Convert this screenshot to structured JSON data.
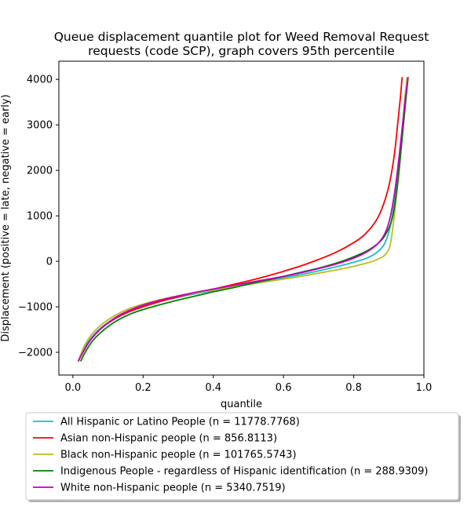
{
  "chart_data": {
    "type": "line",
    "title_lines": [
      "Queue displacement quantile plot for Weed Removal Request",
      "requests (code SCP), graph covers 95th percentile"
    ],
    "xlabel": "quantile",
    "ylabel": "Displacement (positive = late, negative = early)",
    "xlim": [
      -0.04,
      1.0
    ],
    "ylim": [
      -2500,
      4400
    ],
    "x_ticks": [
      0.0,
      0.2,
      0.4,
      0.6,
      0.8,
      1.0
    ],
    "x_tick_labels": [
      "0.0",
      "0.2",
      "0.4",
      "0.6",
      "0.8",
      "1.0"
    ],
    "y_ticks": [
      -2000,
      -1000,
      0,
      1000,
      2000,
      3000,
      4000
    ],
    "y_tick_labels": [
      "−2000",
      "−1000",
      "0",
      "1000",
      "2000",
      "3000",
      "4000"
    ],
    "grid": false,
    "legend_position": "below plot",
    "series": [
      {
        "name": "All Hispanic or Latino People (n = 11778.7768)",
        "color": "#17becf",
        "points": [
          [
            0.015,
            -2200
          ],
          [
            0.03,
            -1950
          ],
          [
            0.05,
            -1700
          ],
          [
            0.08,
            -1460
          ],
          [
            0.12,
            -1250
          ],
          [
            0.16,
            -1100
          ],
          [
            0.2,
            -990
          ],
          [
            0.25,
            -880
          ],
          [
            0.3,
            -790
          ],
          [
            0.35,
            -710
          ],
          [
            0.4,
            -640
          ],
          [
            0.45,
            -570
          ],
          [
            0.5,
            -500
          ],
          [
            0.55,
            -430
          ],
          [
            0.6,
            -360
          ],
          [
            0.65,
            -290
          ],
          [
            0.7,
            -210
          ],
          [
            0.75,
            -120
          ],
          [
            0.8,
            -20
          ],
          [
            0.84,
            80
          ],
          [
            0.87,
            220
          ],
          [
            0.89,
            420
          ],
          [
            0.905,
            800
          ],
          [
            0.92,
            1500
          ],
          [
            0.935,
            2600
          ],
          [
            0.945,
            3500
          ],
          [
            0.952,
            4050
          ]
        ]
      },
      {
        "name": "Asian non-Hispanic people (n = 856.8113)",
        "color": "#ff0000",
        "points": [
          [
            0.015,
            -2200
          ],
          [
            0.03,
            -1980
          ],
          [
            0.05,
            -1730
          ],
          [
            0.08,
            -1480
          ],
          [
            0.12,
            -1260
          ],
          [
            0.16,
            -1110
          ],
          [
            0.2,
            -1000
          ],
          [
            0.25,
            -880
          ],
          [
            0.3,
            -780
          ],
          [
            0.35,
            -690
          ],
          [
            0.4,
            -610
          ],
          [
            0.45,
            -520
          ],
          [
            0.5,
            -430
          ],
          [
            0.55,
            -330
          ],
          [
            0.6,
            -220
          ],
          [
            0.65,
            -100
          ],
          [
            0.7,
            40
          ],
          [
            0.75,
            200
          ],
          [
            0.8,
            410
          ],
          [
            0.83,
            580
          ],
          [
            0.86,
            850
          ],
          [
            0.88,
            1150
          ],
          [
            0.9,
            1650
          ],
          [
            0.915,
            2300
          ],
          [
            0.925,
            3000
          ],
          [
            0.933,
            3600
          ],
          [
            0.938,
            4050
          ]
        ]
      },
      {
        "name": "Black non-Hispanic people (n = 101765.5743)",
        "color": "#bcbd22",
        "points": [
          [
            0.015,
            -2200
          ],
          [
            0.03,
            -1900
          ],
          [
            0.05,
            -1640
          ],
          [
            0.08,
            -1400
          ],
          [
            0.12,
            -1190
          ],
          [
            0.16,
            -1040
          ],
          [
            0.2,
            -940
          ],
          [
            0.25,
            -840
          ],
          [
            0.3,
            -760
          ],
          [
            0.35,
            -690
          ],
          [
            0.4,
            -630
          ],
          [
            0.45,
            -570
          ],
          [
            0.5,
            -510
          ],
          [
            0.55,
            -450
          ],
          [
            0.6,
            -390
          ],
          [
            0.65,
            -330
          ],
          [
            0.7,
            -260
          ],
          [
            0.75,
            -190
          ],
          [
            0.8,
            -110
          ],
          [
            0.85,
            -10
          ],
          [
            0.875,
            70
          ],
          [
            0.89,
            150
          ],
          [
            0.905,
            400
          ],
          [
            0.92,
            1300
          ],
          [
            0.935,
            2500
          ],
          [
            0.945,
            3500
          ],
          [
            0.952,
            4050
          ]
        ]
      },
      {
        "name": "Indigenous People - regardless of Hispanic identification (n = 288.9309)",
        "color": "#008000",
        "points": [
          [
            0.022,
            -2200
          ],
          [
            0.035,
            -2000
          ],
          [
            0.055,
            -1760
          ],
          [
            0.08,
            -1560
          ],
          [
            0.12,
            -1330
          ],
          [
            0.16,
            -1170
          ],
          [
            0.2,
            -1060
          ],
          [
            0.25,
            -950
          ],
          [
            0.3,
            -850
          ],
          [
            0.35,
            -760
          ],
          [
            0.4,
            -670
          ],
          [
            0.45,
            -590
          ],
          [
            0.5,
            -500
          ],
          [
            0.55,
            -420
          ],
          [
            0.6,
            -330
          ],
          [
            0.65,
            -240
          ],
          [
            0.7,
            -150
          ],
          [
            0.75,
            -40
          ],
          [
            0.8,
            100
          ],
          [
            0.84,
            240
          ],
          [
            0.87,
            400
          ],
          [
            0.89,
            580
          ],
          [
            0.91,
            950
          ],
          [
            0.925,
            1700
          ],
          [
            0.938,
            2700
          ],
          [
            0.948,
            3500
          ],
          [
            0.955,
            4050
          ]
        ]
      },
      {
        "name": "White non-Hispanic people (n = 5340.7519)",
        "color": "#bf00bf",
        "points": [
          [
            0.015,
            -2200
          ],
          [
            0.03,
            -1980
          ],
          [
            0.05,
            -1730
          ],
          [
            0.08,
            -1480
          ],
          [
            0.12,
            -1240
          ],
          [
            0.16,
            -1080
          ],
          [
            0.2,
            -960
          ],
          [
            0.25,
            -850
          ],
          [
            0.3,
            -760
          ],
          [
            0.35,
            -680
          ],
          [
            0.4,
            -610
          ],
          [
            0.45,
            -540
          ],
          [
            0.5,
            -470
          ],
          [
            0.55,
            -400
          ],
          [
            0.6,
            -330
          ],
          [
            0.65,
            -250
          ],
          [
            0.7,
            -160
          ],
          [
            0.75,
            -60
          ],
          [
            0.8,
            70
          ],
          [
            0.84,
            220
          ],
          [
            0.87,
            400
          ],
          [
            0.89,
            630
          ],
          [
            0.905,
            1000
          ],
          [
            0.92,
            1700
          ],
          [
            0.935,
            2700
          ],
          [
            0.946,
            3500
          ],
          [
            0.955,
            4050
          ]
        ]
      }
    ]
  }
}
